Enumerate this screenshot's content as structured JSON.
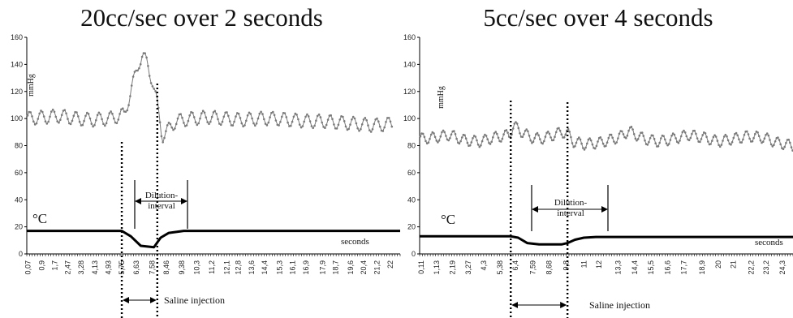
{
  "chart_data": [
    {
      "type": "line",
      "title": "20cc/sec over 2 seconds",
      "ylabel": "mmHg",
      "xlabel": "seconds",
      "ylim": [
        0,
        160
      ],
      "yticks": [
        0,
        20,
        40,
        60,
        80,
        100,
        120,
        140,
        160
      ],
      "xlim": [
        0,
        22.6
      ],
      "x_tick_labels": [
        "0,07",
        "0,9",
        "1,7",
        "2,47",
        "3,28",
        "4,13",
        "4,93",
        "5,75",
        "6,63",
        "7,58",
        "8,46",
        "9,38",
        "10,3",
        "11,2",
        "12,1",
        "12,8",
        "13,6",
        "14,4",
        "15,3",
        "16,1",
        "16,9",
        "17,9",
        "18,7",
        "19,6",
        "20,4",
        "21,2",
        "22"
      ],
      "x_tick_values": [
        0.07,
        0.9,
        1.7,
        2.47,
        3.28,
        4.13,
        4.93,
        5.75,
        6.63,
        7.58,
        8.46,
        9.38,
        10.3,
        11.2,
        12.1,
        12.8,
        13.6,
        14.4,
        15.3,
        16.1,
        16.9,
        17.9,
        18.7,
        19.6,
        20.4,
        21.2,
        22
      ],
      "grid": false,
      "series": [
        {
          "role": "pressure",
          "unit": "mmHg",
          "x": [
            0,
            1,
            2,
            3,
            4,
            5,
            5.9,
            6.3,
            6.8,
            7.0,
            7.3,
            7.6,
            7.9,
            8.2,
            8.6,
            9,
            10,
            11,
            12,
            13,
            14,
            15,
            16,
            17,
            18,
            19,
            20,
            21,
            22,
            22.5
          ],
          "values": [
            100,
            101,
            102,
            100,
            99,
            100,
            103,
            120,
            142,
            147,
            140,
            128,
            110,
            87,
            92,
            98,
            100,
            101,
            100,
            99,
            100,
            100,
            99,
            98,
            98,
            97,
            96,
            95,
            96,
            97
          ],
          "oscillation": 5,
          "color": "#7a7a7a"
        },
        {
          "role": "temperature",
          "name": "°C",
          "x": [
            0,
            5.75,
            6.3,
            6.9,
            7.7,
            8.1,
            8.6,
            9.5,
            22.6
          ],
          "values": [
            17,
            17,
            13,
            6,
            5,
            12,
            15.5,
            17,
            17
          ],
          "color": "#000000"
        }
      ],
      "markers": [
        {
          "x": 5.75,
          "label": "dilution-start"
        },
        {
          "x": 7.9,
          "label": "dilution-end"
        }
      ],
      "annotations": {
        "dilution": "Dilution-\ninterval",
        "saline": "Saline injection",
        "seconds": "seconds",
        "celsius": "°C"
      }
    },
    {
      "type": "line",
      "title": "5cc/sec over 4 seconds",
      "ylabel": "mmHg",
      "xlabel": "seconds",
      "ylim": [
        0,
        160
      ],
      "yticks": [
        0,
        20,
        40,
        60,
        80,
        100,
        120,
        140,
        160
      ],
      "xlim": [
        0,
        25
      ],
      "x_tick_labels": [
        "0,11",
        "1,13",
        "2,19",
        "3,27",
        "4,3",
        "5,38",
        "6,4",
        "7,59",
        "8,68",
        "9,8",
        "11",
        "12",
        "13,3",
        "14,4",
        "15,5",
        "16,6",
        "17,7",
        "18,9",
        "20",
        "21",
        "22,2",
        "23,2",
        "24,3"
      ],
      "x_tick_values": [
        0.11,
        1.13,
        2.19,
        3.27,
        4.3,
        5.38,
        6.4,
        7.59,
        8.68,
        9.8,
        11,
        12,
        13.3,
        14.4,
        15.5,
        16.6,
        17.7,
        18.9,
        20,
        21,
        22.2,
        23.2,
        24.3
      ],
      "grid": false,
      "series": [
        {
          "role": "pressure",
          "unit": "mmHg",
          "x": [
            0,
            1,
            2,
            3,
            4,
            5,
            6,
            6.3,
            6.6,
            7,
            7.5,
            8,
            8.5,
            9,
            9.5,
            9.9,
            10.3,
            11,
            12,
            13,
            13.5,
            14,
            15,
            16,
            17,
            18,
            19,
            20,
            21,
            22,
            23,
            24,
            25
          ],
          "values": [
            85,
            86,
            88,
            84,
            83,
            86,
            88,
            95,
            92,
            89,
            86,
            85,
            86,
            88,
            90,
            89,
            83,
            81,
            82,
            85,
            87,
            91,
            85,
            83,
            85,
            88,
            86,
            83,
            85,
            87,
            86,
            82,
            80
          ],
          "oscillation": 4,
          "color": "#7a7a7a"
        },
        {
          "role": "temperature",
          "name": "°C",
          "x": [
            0,
            6.1,
            6.6,
            7.2,
            8.0,
            9.5,
            9.9,
            10.4,
            11.0,
            11.8,
            25
          ],
          "values": [
            13,
            13,
            12,
            8,
            7,
            7,
            8,
            10.5,
            12,
            12.5,
            12.5
          ],
          "color": "#000000"
        }
      ],
      "markers": [
        {
          "x": 6.1,
          "label": "dilution-start"
        },
        {
          "x": 9.9,
          "label": "dilution-end"
        }
      ],
      "annotations": {
        "dilution": "Dilution-\ninterval",
        "saline": "Saline injection",
        "seconds": "seconds",
        "celsius": "°C"
      }
    }
  ]
}
